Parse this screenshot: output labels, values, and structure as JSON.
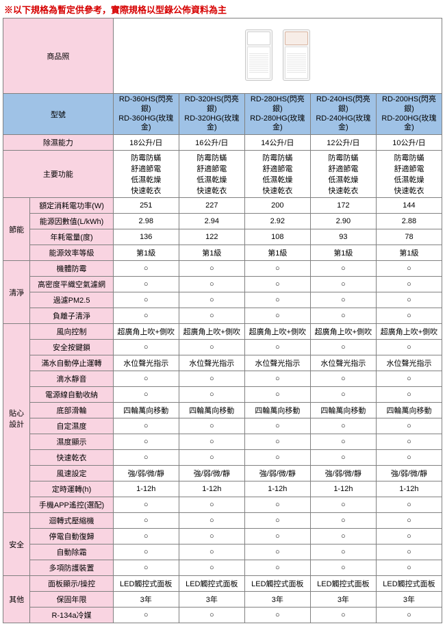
{
  "notice": "※以下規格為暫定供參考，實際規格以型錄公佈資料為主",
  "header": {
    "photo": "商品照",
    "model": "型號"
  },
  "models": [
    {
      "l1": "RD-360HS(閃亮銀)",
      "l2": "RD-360HG(玫瑰金)"
    },
    {
      "l1": "RD-320HS(閃亮銀)",
      "l2": "RD-320HG(玫瑰金)"
    },
    {
      "l1": "RD-280HS(閃亮銀)",
      "l2": "RD-280HG(玫瑰金)"
    },
    {
      "l1": "RD-240HS(閃亮銀)",
      "l2": "RD-240HG(玫瑰金)"
    },
    {
      "l1": "RD-200HS(閃亮銀)",
      "l2": "RD-200HG(玫瑰金)"
    }
  ],
  "capacity": {
    "label": "除濕能力",
    "v": [
      "18公升/日",
      "16公升/日",
      "14公升/日",
      "12公升/日",
      "10公升/日"
    ]
  },
  "feature": {
    "label": "主要功能",
    "lines": [
      "防霉防蟎",
      "舒適節電",
      "低濕乾燥",
      "快速乾衣"
    ]
  },
  "groups": [
    {
      "name": "節能",
      "rows": [
        {
          "label": "額定消耗電功率(W)",
          "v": [
            "251",
            "227",
            "200",
            "172",
            "144"
          ]
        },
        {
          "label": "能源因數值(L/kWh)",
          "v": [
            "2.98",
            "2.94",
            "2.92",
            "2.90",
            "2.88"
          ]
        },
        {
          "label": "年耗電量(度)",
          "v": [
            "136",
            "122",
            "108",
            "93",
            "78"
          ]
        },
        {
          "label": "能源效率等級",
          "v": [
            "第1級",
            "第1級",
            "第1級",
            "第1級",
            "第1級"
          ]
        }
      ]
    },
    {
      "name": "清淨",
      "rows": [
        {
          "label": "機體防霉",
          "v": [
            "○",
            "○",
            "○",
            "○",
            "○"
          ]
        },
        {
          "label": "高密度平織空氣濾網",
          "v": [
            "○",
            "○",
            "○",
            "○",
            "○"
          ]
        },
        {
          "label": "過濾PM2.5",
          "v": [
            "○",
            "○",
            "○",
            "○",
            "○"
          ]
        },
        {
          "label": "負離子清淨",
          "v": [
            "○",
            "○",
            "○",
            "○",
            "○"
          ]
        }
      ]
    },
    {
      "name": "貼心設計",
      "rows": [
        {
          "label": "風向控制",
          "v": [
            "超廣角上吹+側吹",
            "超廣角上吹+側吹",
            "超廣角上吹+側吹",
            "超廣角上吹+側吹",
            "超廣角上吹+側吹"
          ]
        },
        {
          "label": "安全按鍵鎖",
          "v": [
            "○",
            "○",
            "○",
            "○",
            "○"
          ]
        },
        {
          "label": "滿水自動停止運轉",
          "v": [
            "水位聲光指示",
            "水位聲光指示",
            "水位聲光指示",
            "水位聲光指示",
            "水位聲光指示"
          ]
        },
        {
          "label": "滴水靜音",
          "v": [
            "○",
            "○",
            "○",
            "○",
            "○"
          ]
        },
        {
          "label": "電源線自動收納",
          "v": [
            "○",
            "○",
            "○",
            "○",
            "○"
          ]
        },
        {
          "label": "底部滑輪",
          "v": [
            "四輪萬向移動",
            "四輪萬向移動",
            "四輪萬向移動",
            "四輪萬向移動",
            "四輪萬向移動"
          ]
        },
        {
          "label": "自定濕度",
          "v": [
            "○",
            "○",
            "○",
            "○",
            "○"
          ]
        },
        {
          "label": "濕度顯示",
          "v": [
            "○",
            "○",
            "○",
            "○",
            "○"
          ]
        },
        {
          "label": "快速乾衣",
          "v": [
            "○",
            "○",
            "○",
            "○",
            "○"
          ]
        },
        {
          "label": "風速設定",
          "v": [
            "強/弱/微/靜",
            "強/弱/微/靜",
            "強/弱/微/靜",
            "強/弱/微/靜",
            "強/弱/微/靜"
          ]
        },
        {
          "label": "定時運轉(h)",
          "v": [
            "1-12h",
            "1-12h",
            "1-12h",
            "1-12h",
            "1-12h"
          ]
        },
        {
          "label": "手機APP遙控(選配)",
          "v": [
            "○",
            "○",
            "○",
            "○",
            "○"
          ]
        }
      ]
    },
    {
      "name": "安全",
      "rows": [
        {
          "label": "迴轉式壓縮機",
          "v": [
            "○",
            "○",
            "○",
            "○",
            "○"
          ]
        },
        {
          "label": "停電自動復歸",
          "v": [
            "○",
            "○",
            "○",
            "○",
            "○"
          ]
        },
        {
          "label": "自動除霜",
          "v": [
            "○",
            "○",
            "○",
            "○",
            "○"
          ]
        },
        {
          "label": "多項防護裝置",
          "v": [
            "○",
            "○",
            "○",
            "○",
            "○"
          ]
        }
      ]
    },
    {
      "name": "其他",
      "rows": [
        {
          "label": "面板顯示/操控",
          "v": [
            "LED觸控式面板",
            "LED觸控式面板",
            "LED觸控式面板",
            "LED觸控式面板",
            "LED觸控式面板"
          ]
        },
        {
          "label": "保固年限",
          "v": [
            "3年",
            "3年",
            "3年",
            "3年",
            "3年"
          ]
        },
        {
          "label": "R-134a冷媒",
          "v": [
            "○",
            "○",
            "○",
            "○",
            "○"
          ]
        }
      ]
    }
  ]
}
